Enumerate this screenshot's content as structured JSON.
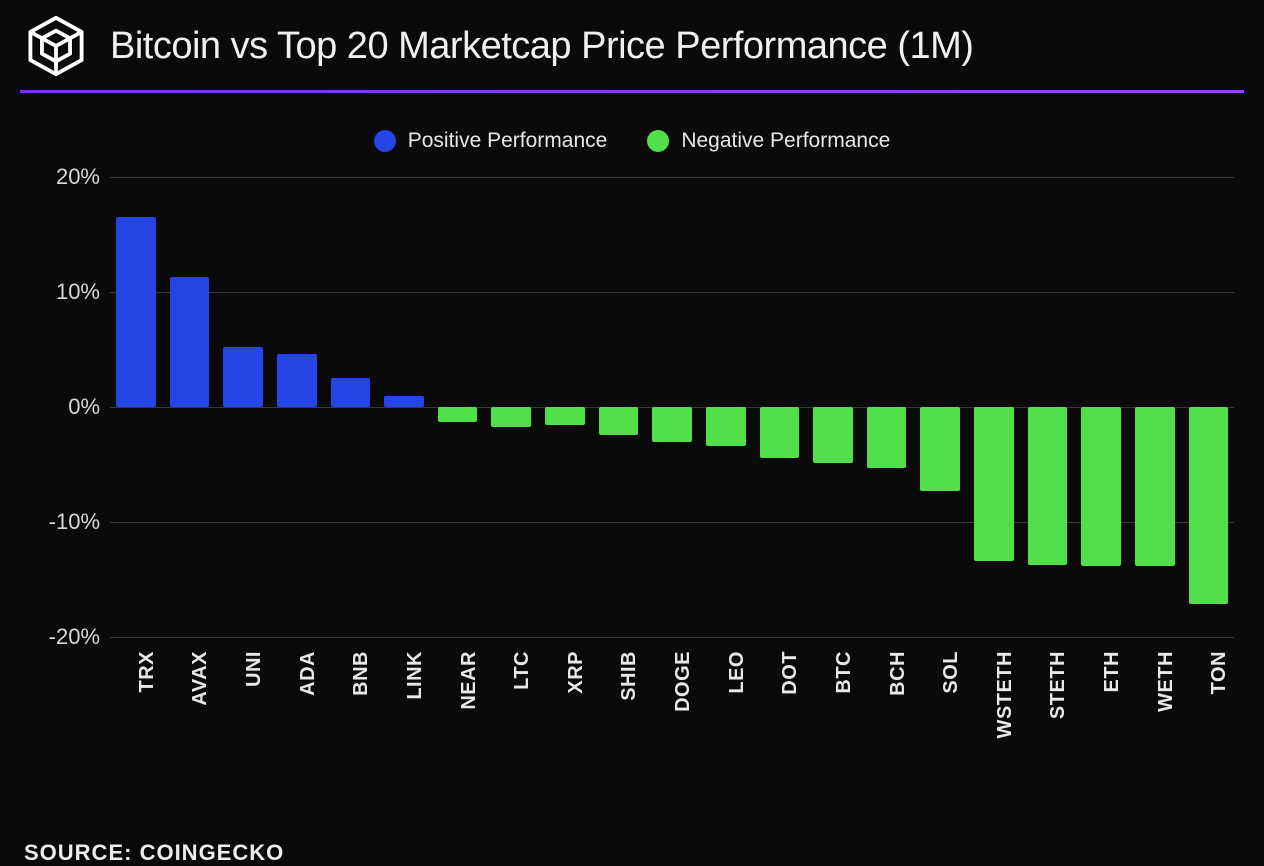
{
  "header": {
    "title": "Bitcoin vs Top 20 Marketcap Price Performance (1M)"
  },
  "divider_gradient": [
    "#7b2fff",
    "#a040ff"
  ],
  "legend": {
    "positive": {
      "label": "Positive Performance",
      "color": "#2545e6"
    },
    "negative": {
      "label": "Negative Performance",
      "color": "#52e04a"
    }
  },
  "chart": {
    "type": "bar",
    "background_color": "#0a0a0a",
    "grid_color": "#3a3a3a",
    "text_color": "#e8e8e8",
    "y": {
      "min": -20,
      "max": 20,
      "step": 10,
      "ticks": [
        "20%",
        "10%",
        "0%",
        "-10%",
        "-20%"
      ]
    },
    "series": [
      {
        "label": "TRX",
        "value": 16.5,
        "sign": "positive"
      },
      {
        "label": "AVAX",
        "value": 11.3,
        "sign": "positive"
      },
      {
        "label": "UNI",
        "value": 5.2,
        "sign": "positive"
      },
      {
        "label": "ADA",
        "value": 4.6,
        "sign": "positive"
      },
      {
        "label": "BNB",
        "value": 2.5,
        "sign": "positive"
      },
      {
        "label": "LINK",
        "value": 1.0,
        "sign": "positive"
      },
      {
        "label": "NEAR",
        "value": -1.3,
        "sign": "negative"
      },
      {
        "label": "LTC",
        "value": -1.7,
        "sign": "negative"
      },
      {
        "label": "XRP",
        "value": -1.6,
        "sign": "negative"
      },
      {
        "label": "SHIB",
        "value": -2.4,
        "sign": "negative"
      },
      {
        "label": "DOGE",
        "value": -3.0,
        "sign": "negative"
      },
      {
        "label": "LEO",
        "value": -3.4,
        "sign": "negative"
      },
      {
        "label": "DOT",
        "value": -4.4,
        "sign": "negative"
      },
      {
        "label": "BTC",
        "value": -4.9,
        "sign": "negative"
      },
      {
        "label": "BCH",
        "value": -5.3,
        "sign": "negative"
      },
      {
        "label": "SOL",
        "value": -7.3,
        "sign": "negative"
      },
      {
        "label": "WSTETH",
        "value": -13.4,
        "sign": "negative"
      },
      {
        "label": "STETH",
        "value": -13.7,
        "sign": "negative"
      },
      {
        "label": "ETH",
        "value": -13.8,
        "sign": "negative"
      },
      {
        "label": "WETH",
        "value": -13.8,
        "sign": "negative"
      },
      {
        "label": "TON",
        "value": -17.1,
        "sign": "negative"
      }
    ],
    "bar_width_ratio": 0.9,
    "label_fontsize": 20,
    "tick_fontsize": 22
  },
  "source": {
    "prefix": "SOURCE: ",
    "name": "COINGECKO"
  }
}
